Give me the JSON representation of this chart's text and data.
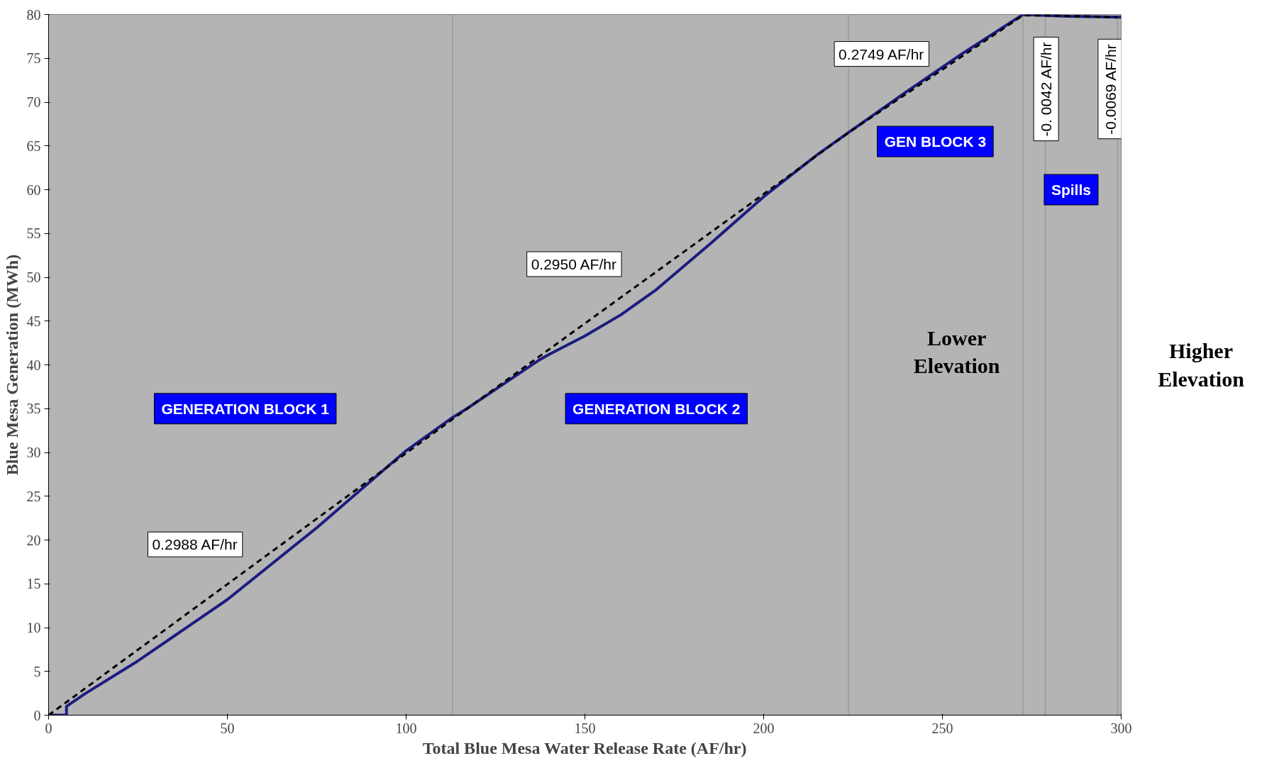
{
  "chart_data": {
    "type": "line",
    "xlabel": "Total Blue Mesa Water Release Rate (AF/hr)",
    "ylabel": "Blue Mesa Generation (MWh)",
    "xlim": [
      0,
      300
    ],
    "ylim": [
      0,
      80
    ],
    "xticks": [
      0,
      50,
      100,
      150,
      200,
      250,
      300
    ],
    "yticks": [
      0,
      5,
      10,
      15,
      20,
      25,
      30,
      35,
      40,
      45,
      50,
      55,
      60,
      65,
      70,
      75,
      80
    ],
    "grid": false,
    "series": [
      {
        "color": "#1c1c80",
        "line_style": "solid",
        "x": [
          0,
          5,
          5,
          10,
          25,
          50,
          75,
          100,
          113,
          117,
          125,
          137,
          140,
          150,
          160,
          170,
          185,
          200,
          215,
          224,
          240,
          255,
          272.5,
          285,
          300
        ],
        "values": [
          0,
          0,
          1,
          2.4,
          6.2,
          13.2,
          21.4,
          30.2,
          34,
          35,
          37.2,
          40.5,
          41.2,
          43.3,
          45.7,
          48.6,
          53.8,
          59.2,
          64,
          66.6,
          71.2,
          75.4,
          80,
          79.8,
          79.7
        ]
      },
      {
        "color": "#000000",
        "line_style": "dashed",
        "x": [
          0,
          113,
          223.7,
          272.5,
          278.8,
          299
        ],
        "values": [
          0,
          33.8,
          66.5,
          79.9,
          79.9,
          79.7
        ]
      }
    ],
    "ref_lines": [
      {
        "axis": "x",
        "value": 113,
        "color": "#a0a0a0"
      },
      {
        "axis": "x",
        "value": 223.7,
        "color": "#a0a0a0"
      },
      {
        "axis": "x",
        "value": 272.5,
        "color": "#a0a0a0"
      },
      {
        "axis": "x",
        "value": 278.8,
        "color": "#a0a0a0"
      },
      {
        "axis": "x",
        "value": 299,
        "color": "#a0a0a0"
      }
    ],
    "annotations": [
      "0.2988 AF/hr",
      "0.2950 AF/hr",
      "0.2749 AF/hr",
      "-0. 0042 AF/hr",
      "-0.0069 AF/hr",
      "GENERATION BLOCK 1",
      "GENERATION BLOCK 2",
      "GEN BLOCK 3",
      "Spills",
      "Lower Elevation",
      "Higher Elevation"
    ]
  }
}
